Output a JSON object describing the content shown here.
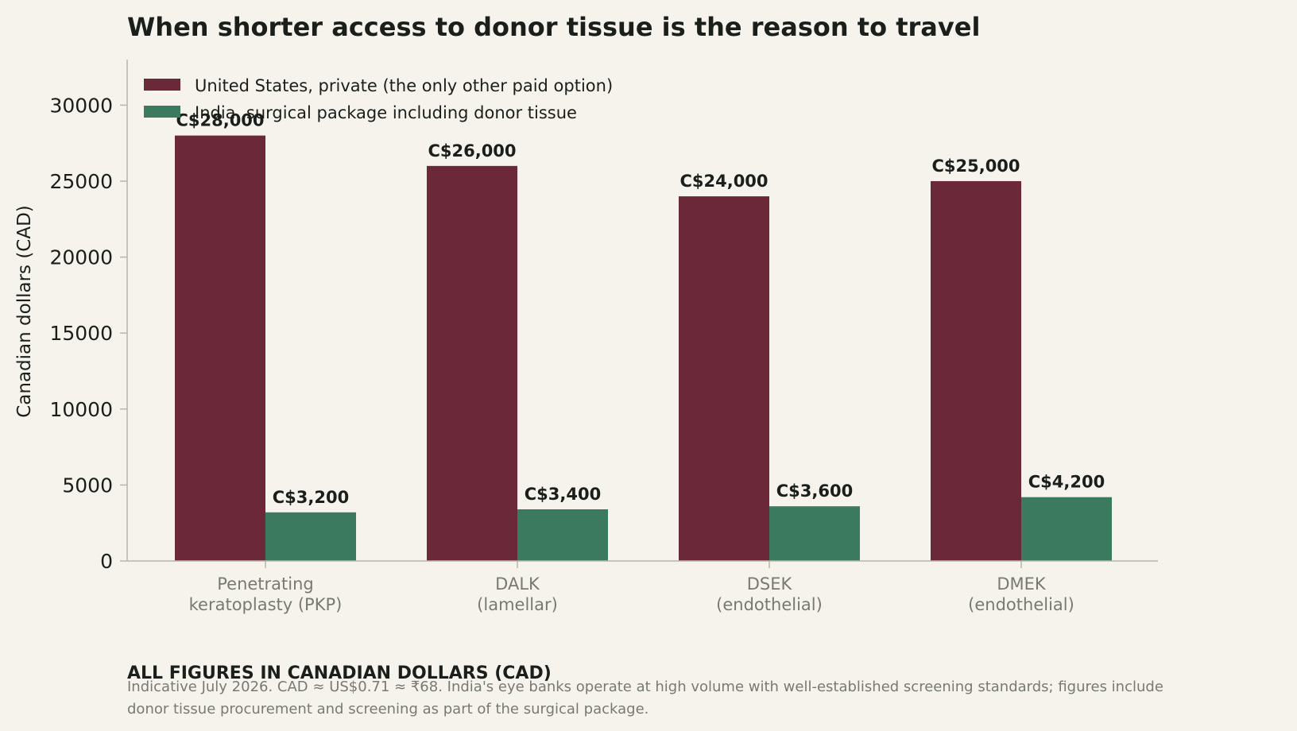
{
  "chart_data": {
    "type": "bar",
    "title": "When shorter access to donor tissue is the reason to travel",
    "ylabel": "Canadian dollars (CAD)",
    "xlabel": "",
    "ylim": [
      0,
      33000
    ],
    "yticks": [
      0,
      5000,
      10000,
      15000,
      20000,
      25000,
      30000
    ],
    "categories": [
      [
        "Penetrating",
        "keratoplasty (PKP)"
      ],
      [
        "DALK",
        "(lamellar)"
      ],
      [
        "DSEK",
        "(endothelial)"
      ],
      [
        "DMEK",
        "(endothelial)"
      ]
    ],
    "series": [
      {
        "name": "United States, private (the only other paid option)",
        "color": "#6b2838",
        "values": [
          28000,
          26000,
          24000,
          25000
        ],
        "labels": [
          "C$28,000",
          "C$26,000",
          "C$24,000",
          "C$25,000"
        ]
      },
      {
        "name": "India, surgical package including donor tissue",
        "color": "#3c7a5f",
        "values": [
          3200,
          3400,
          3600,
          4200
        ],
        "labels": [
          "C$3,200",
          "C$3,400",
          "C$3,600",
          "C$4,200"
        ]
      }
    ],
    "grid": false,
    "legend_position": "top-left",
    "axis_color": "#b9b6a6"
  },
  "footnote": {
    "heading": "ALL FIGURES IN CANADIAN DOLLARS (CAD)",
    "lines": [
      "Indicative July 2026. CAD ≈ US$0.71 ≈ ₹68. India's eye banks operate at high volume with well-established screening standards; figures include",
      "donor tissue procurement and screening as part of the surgical package."
    ]
  }
}
